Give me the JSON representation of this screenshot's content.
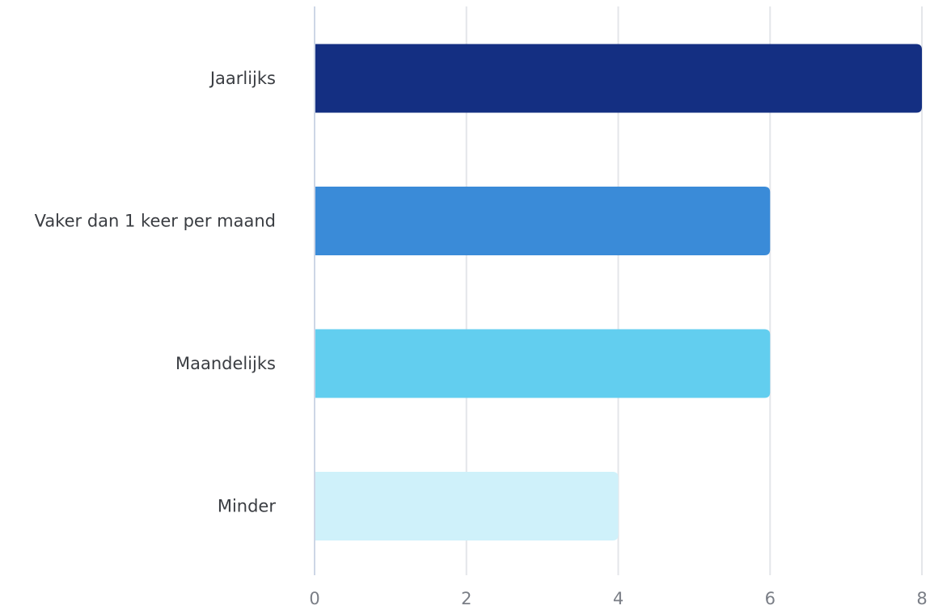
{
  "chart_data": {
    "type": "bar",
    "orientation": "horizontal",
    "title": "",
    "xlabel": "",
    "ylabel": "",
    "categories": [
      "Jaarlijks",
      "Vaker dan 1 keer per maand",
      "Maandelijks",
      "Minder"
    ],
    "values": [
      8,
      6,
      6,
      4
    ],
    "colors": [
      "#142f82",
      "#3a8bd8",
      "#62ceef",
      "#cff1fa"
    ],
    "xlim": [
      0,
      8
    ],
    "xticks": [
      "0",
      "2",
      "4",
      "6",
      "8"
    ],
    "grid": "vertical",
    "legend": "none"
  }
}
